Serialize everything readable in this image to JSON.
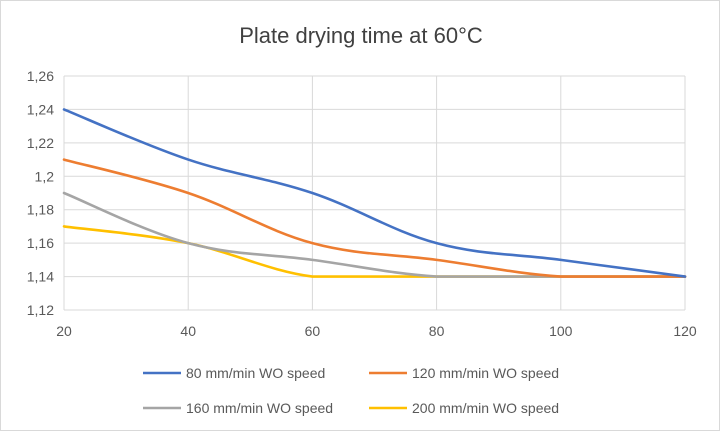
{
  "chart_data": {
    "type": "line",
    "title": "Plate drying time at 60°C",
    "xlabel": "",
    "ylabel": "",
    "x": [
      20,
      40,
      60,
      80,
      100,
      120
    ],
    "x_ticks": [
      "20",
      "40",
      "60",
      "80",
      "100",
      "120"
    ],
    "xlim": [
      20,
      120
    ],
    "ylim": [
      1.12,
      1.26
    ],
    "y_ticks": [
      "1,12",
      "1,14",
      "1,16",
      "1,18",
      "1,2",
      "1,22",
      "1,24",
      "1,26"
    ],
    "y_tick_values": [
      1.12,
      1.14,
      1.16,
      1.18,
      1.2,
      1.22,
      1.24,
      1.26
    ],
    "grid": true,
    "legend_position": "bottom",
    "series": [
      {
        "name": "80 mm/min WO speed",
        "color": "#4472c4",
        "values": [
          1.24,
          1.21,
          1.19,
          1.16,
          1.15,
          1.14
        ]
      },
      {
        "name": "120 mm/min WO speed",
        "color": "#ed7d31",
        "values": [
          1.21,
          1.19,
          1.16,
          1.15,
          1.14,
          1.14
        ]
      },
      {
        "name": "160 mm/min WO speed",
        "color": "#a5a5a5",
        "values": [
          1.19,
          1.16,
          1.15,
          1.14,
          1.14,
          1.14
        ]
      },
      {
        "name": "200 mm/min WO speed",
        "color": "#ffc000",
        "values": [
          1.17,
          1.16,
          1.14,
          1.14,
          1.14,
          1.14
        ]
      }
    ]
  }
}
